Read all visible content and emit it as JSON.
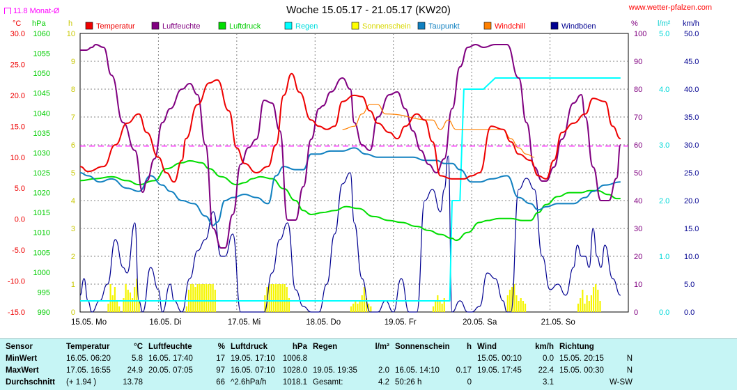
{
  "title": "Woche 15.05.17 - 21.05.17 (KW20)",
  "site": "www.wetter-pfalzen.com",
  "monat_label": "11.8 Monat-Ø",
  "units": {
    "temp": "°C",
    "hpa": "hPa",
    "h": "h",
    "pct": "%",
    "lm2": "l/m²",
    "kmh": "km/h"
  },
  "colors": {
    "temperatur": "#ee0000",
    "luftfeuchte": "#800080",
    "luftdruck": "#00dd00",
    "regen": "#00ffff",
    "sonnenschein": "#ffff00",
    "taupunkt": "#1080c0",
    "windchill": "#ff8000",
    "windboeen": "#000090",
    "monat": "#ff00ff"
  },
  "chart_data": {
    "type": "line",
    "title": "Woche 15.05.17 - 21.05.17 (KW20)",
    "x_ticks": [
      "15.05. Mo",
      "16.05. Di",
      "17.05. Mi",
      "18.05. Do",
      "19.05. Fr",
      "20.05. Sa",
      "21.05. So"
    ],
    "axes": {
      "temp": {
        "label": "°C",
        "ylim": [
          -15,
          30
        ],
        "ticks": [
          "30.0",
          "25.0",
          "20.0",
          "15.0",
          "10.0",
          "5.0",
          "0.0",
          "-5.0",
          "-10.0",
          "-15.0"
        ]
      },
      "pressure": {
        "label": "hPa",
        "ylim": [
          990,
          1060
        ],
        "ticks": [
          "1060",
          "1055",
          "1050",
          "1045",
          "1040",
          "1035",
          "1030",
          "1025",
          "1020",
          "1015",
          "1010",
          "1005",
          "1000",
          "995",
          "990"
        ]
      },
      "sun": {
        "label": "h",
        "ylim": [
          0,
          10
        ],
        "ticks": [
          "10",
          "9",
          "8",
          "7",
          "6",
          "5",
          "4",
          "3",
          "2",
          "1",
          "0"
        ]
      },
      "humidity": {
        "label": "%",
        "ylim": [
          0,
          100
        ],
        "ticks": [
          "100",
          "90",
          "80",
          "70",
          "60",
          "50",
          "40",
          "30",
          "20",
          "10",
          "0"
        ]
      },
      "rain": {
        "label": "l/m²",
        "ylim": [
          0,
          5
        ],
        "ticks": [
          "5.0",
          "4.0",
          "3.0",
          "2.0",
          "1.0",
          "0.0"
        ]
      },
      "wind": {
        "label": "km/h",
        "ylim": [
          0,
          50
        ],
        "ticks": [
          "50.0",
          "45.0",
          "40.0",
          "35.0",
          "30.0",
          "25.0",
          "20.0",
          "15.0",
          "10.0",
          "5.0",
          "0.0"
        ]
      }
    },
    "legend": [
      "Temperatur",
      "Luftfeuchte",
      "Luftdruck",
      "Regen",
      "Sonnenschein",
      "Taupunkt",
      "Windchill",
      "Windböen"
    ],
    "monat_avg_temp": 11.8,
    "series": [
      {
        "name": "Temperatur",
        "axis": "temp",
        "color": "#ee0000",
        "x": [
          0,
          0.1,
          0.3,
          0.45,
          0.6,
          0.75,
          0.85,
          1.0,
          1.1,
          1.2,
          1.3,
          1.35,
          1.5,
          1.65,
          1.75,
          1.9,
          2.0,
          2.1,
          2.25,
          2.4,
          2.5,
          2.6,
          2.7,
          2.8,
          2.95,
          3.05,
          3.15,
          3.25,
          3.35,
          3.5,
          3.6,
          3.7,
          3.8,
          3.95,
          4.05,
          4.15,
          4.3,
          4.4,
          4.5,
          4.6,
          4.75,
          4.9,
          5.0,
          5.1,
          5.25,
          5.4,
          5.5,
          5.6,
          5.75,
          5.85,
          5.95,
          6.05,
          6.15,
          6.3,
          6.45,
          6.55,
          6.7,
          6.8,
          6.9
        ],
        "y": [
          8.5,
          7.7,
          8.5,
          12,
          15.5,
          17,
          14,
          10,
          7.5,
          6,
          9.5,
          13,
          18.5,
          22,
          22.5,
          17.5,
          11.5,
          9,
          7.5,
          8.5,
          12,
          20,
          23.5,
          20.5,
          16,
          15,
          14.5,
          15,
          19,
          20,
          19.8,
          17.5,
          15.5,
          14,
          13,
          15,
          17,
          16,
          12.5,
          7,
          6.5,
          6.5,
          7,
          7.5,
          15,
          14.5,
          12.5,
          10.5,
          9.5,
          7,
          6.5,
          9.5,
          14,
          15.5,
          17,
          19.5,
          19,
          15,
          13
        ]
      },
      {
        "name": "Luftfeuchte",
        "axis": "humidity",
        "color": "#800080",
        "x": [
          0,
          0.08,
          0.15,
          0.2,
          0.3,
          0.4,
          0.55,
          0.7,
          0.8,
          0.85,
          0.95,
          1.05,
          1.15,
          1.3,
          1.4,
          1.5,
          1.6,
          1.7,
          1.8,
          1.85,
          1.95,
          2.05,
          2.15,
          2.25,
          2.35,
          2.45,
          2.55,
          2.65,
          2.75,
          2.85,
          2.95,
          3.05,
          3.1,
          3.2,
          3.35,
          3.45,
          3.5,
          3.6,
          3.7,
          3.8,
          3.95,
          4.05,
          4.15,
          4.25,
          4.35,
          4.45,
          4.55,
          4.65,
          4.75,
          4.85,
          4.95,
          5.05,
          5.15,
          5.3,
          5.45,
          5.6,
          5.7,
          5.8,
          5.9,
          5.95,
          6.05,
          6.15,
          6.3,
          6.4,
          6.45,
          6.55,
          6.65,
          6.75,
          6.85,
          6.9
        ],
        "y": [
          94,
          94,
          95,
          96,
          95,
          85,
          68,
          58,
          43,
          47,
          55,
          68,
          73,
          80,
          82,
          78,
          60,
          30,
          23,
          23,
          35,
          53,
          59,
          62,
          76,
          75,
          65,
          33,
          33,
          45,
          62,
          73,
          74,
          79,
          84,
          80,
          68,
          60,
          58,
          70,
          78,
          79,
          73,
          65,
          58,
          53,
          50,
          55,
          73,
          88,
          95,
          96,
          95,
          96,
          96,
          84,
          68,
          52,
          47,
          47,
          52,
          62,
          75,
          78,
          70,
          52,
          40,
          40,
          48,
          60
        ]
      },
      {
        "name": "Luftdruck",
        "axis": "pressure",
        "color": "#00dd00",
        "x": [
          0,
          0.2,
          0.4,
          0.6,
          0.75,
          0.95,
          1.1,
          1.3,
          1.4,
          1.55,
          1.65,
          1.8,
          2.0,
          2.1,
          2.2,
          2.3,
          2.45,
          2.6,
          2.75,
          2.85,
          2.95,
          3.1,
          3.25,
          3.4,
          3.55,
          3.75,
          3.95,
          4.1,
          4.3,
          4.45,
          4.6,
          4.75,
          4.8,
          4.95,
          5.1,
          5.2,
          5.35,
          5.5,
          5.65,
          5.75,
          5.85,
          5.95,
          6.1,
          6.25,
          6.4,
          6.5,
          6.6,
          6.75,
          6.85,
          6.9
        ],
        "y": [
          1023,
          1023.5,
          1024,
          1023,
          1022,
          1023,
          1026,
          1027.5,
          1028,
          1027.5,
          1026,
          1024,
          1022,
          1022.5,
          1023.5,
          1024,
          1023.5,
          1021,
          1018,
          1015.5,
          1014.5,
          1015,
          1015.5,
          1016.5,
          1016,
          1014,
          1013,
          1012.5,
          1011.5,
          1010.5,
          1009.5,
          1008.5,
          1008,
          1010,
          1012.5,
          1013,
          1013.5,
          1013.5,
          1013,
          1013,
          1015,
          1017,
          1019,
          1020,
          1020,
          1020.5,
          1020.5,
          1019.5,
          1018.5,
          1018.5
        ]
      },
      {
        "name": "Taupunkt",
        "axis": "temp",
        "color": "#1080c0",
        "x": [
          0,
          0.1,
          0.25,
          0.4,
          0.6,
          0.75,
          0.9,
          1.05,
          1.15,
          1.3,
          1.45,
          1.6,
          1.7,
          1.75,
          1.85,
          1.95,
          2.1,
          2.25,
          2.4,
          2.5,
          2.6,
          2.75,
          2.85,
          2.95,
          3.05,
          3.2,
          3.35,
          3.5,
          3.65,
          3.8,
          3.95,
          4.1,
          4.25,
          4.4,
          4.55,
          4.65,
          4.75,
          4.85,
          5.0,
          5.1,
          5.25,
          5.45,
          5.6,
          5.75,
          5.85,
          5.95,
          6.1,
          6.3,
          6.45,
          6.55,
          6.7,
          6.9
        ],
        "y": [
          7.5,
          7,
          6,
          6.5,
          5,
          4.5,
          7,
          5.5,
          4.5,
          3,
          2.5,
          0.5,
          -1,
          -0.5,
          3,
          3.5,
          4,
          3.5,
          2.5,
          7,
          8.5,
          8,
          8,
          10.5,
          10.5,
          11,
          11,
          11.5,
          10.5,
          10,
          10,
          10,
          10,
          9.5,
          9.5,
          9,
          9,
          8,
          6,
          6,
          6.5,
          7,
          3.5,
          2.5,
          1.5,
          2,
          2.5,
          2.5,
          3.5,
          4.5,
          5.5,
          6
        ]
      },
      {
        "name": "Windchill",
        "axis": "temp",
        "color": "#ff8000",
        "x": [
          3.35,
          3.5,
          3.6,
          3.7,
          3.8,
          3.9,
          4.5,
          4.6,
          4.7,
          4.8,
          5.4,
          5.5,
          5.6,
          5.7,
          5.8
        ],
        "y": [
          14.5,
          15,
          17,
          18.5,
          18.5,
          17,
          16,
          14.5,
          16,
          14.5,
          14.5,
          13,
          11.5,
          10.5,
          10
        ]
      },
      {
        "name": "Regen",
        "axis": "rain",
        "color": "#00ffff",
        "x": [
          0,
          4.72,
          4.75,
          4.85,
          4.9,
          5.0,
          5.15,
          5.3,
          6.9
        ],
        "y": [
          0.2,
          0.2,
          2.0,
          2.0,
          4.0,
          4.0,
          4.0,
          4.2,
          4.2
        ]
      },
      {
        "name": "Windböen",
        "axis": "wind",
        "color": "#000090",
        "x": [
          0,
          0.05,
          0.1,
          0.15,
          0.25,
          0.35,
          0.45,
          0.55,
          0.6,
          0.7,
          0.75,
          0.8,
          0.9,
          1.0,
          1.05,
          1.15,
          1.2,
          1.3,
          1.4,
          1.5,
          1.6,
          1.7,
          1.8,
          1.85,
          1.95,
          2.05,
          2.15,
          2.25,
          2.35,
          2.45,
          2.55,
          2.65,
          2.75,
          2.85,
          2.95,
          3.05,
          3.15,
          3.25,
          3.35,
          3.45,
          3.5,
          3.6,
          3.7,
          3.8,
          3.9,
          4.0,
          4.1,
          4.2,
          4.3,
          4.4,
          4.5,
          4.6,
          4.65,
          4.7,
          4.75,
          4.85,
          4.95,
          5.0,
          5.1,
          5.2,
          5.3,
          5.4,
          5.45,
          5.5,
          5.6,
          5.7,
          5.8,
          5.9,
          6.0,
          6.1,
          6.2,
          6.3,
          6.35,
          6.4,
          6.45,
          6.5,
          6.55,
          6.6,
          6.65,
          6.7,
          6.8,
          6.9
        ],
        "y": [
          3,
          6,
          2,
          0,
          2,
          5,
          13,
          8,
          7,
          16,
          2,
          0,
          8,
          4,
          0,
          5,
          2,
          0,
          6,
          11,
          13,
          18,
          10,
          10,
          14,
          0,
          0,
          0,
          0,
          7,
          13,
          16,
          4,
          1,
          0,
          0,
          5,
          14,
          23,
          25,
          16,
          6,
          0,
          0,
          2,
          0,
          6,
          0,
          0,
          20,
          22,
          18,
          22,
          28,
          0,
          2,
          0,
          0,
          1,
          7,
          6,
          2,
          0,
          0,
          22,
          24,
          22,
          10,
          4,
          5,
          3,
          8,
          12,
          10,
          10,
          8,
          15,
          10,
          8,
          12,
          6,
          3
        ]
      }
    ],
    "sunshine_bars": [
      {
        "day": 0,
        "start": 0.35,
        "values": [
          0.3,
          1,
          0.6,
          0.9,
          0.4,
          0.2,
          0,
          0.5,
          1,
          0.8,
          0.7,
          0.5,
          0.9,
          1.2,
          0.4
        ]
      },
      {
        "day": 1,
        "start": 0.35,
        "values": [
          0.2,
          0.8,
          1,
          1,
          0.9,
          1,
          1,
          1,
          1,
          1,
          1,
          1,
          1,
          0.8
        ]
      },
      {
        "day": 2,
        "start": 0.35,
        "values": [
          0.6,
          0.9,
          1,
          1,
          1,
          1,
          1,
          1,
          1,
          1,
          0.9,
          0.5
        ]
      },
      {
        "day": 3,
        "start": 0.45,
        "values": [
          0.2,
          0.3,
          0.4,
          0.3,
          0.4,
          0.6,
          0.9,
          0.5,
          0.3,
          0.2
        ]
      },
      {
        "day": 4,
        "start": 0.5,
        "values": [
          0.2,
          0.4,
          0.6,
          0.4,
          0.3,
          0.5
        ]
      },
      {
        "day": 5,
        "start": 0.45,
        "values": [
          0.6,
          0.8,
          0.9,
          1,
          0.6,
          0.4,
          0.5,
          0.4,
          0.3
        ]
      },
      {
        "day": 6,
        "start": 0.35,
        "values": [
          0.3,
          0.5,
          0.8,
          0.3,
          0.6,
          0.4,
          0.6,
          0.9,
          1,
          0.8,
          0.4
        ]
      }
    ]
  },
  "table": {
    "columns": [
      {
        "head": "Sensor",
        "unit": "",
        "rows": [
          "MinWert",
          "MaxWert",
          "Durchschnitt"
        ],
        "vals": [
          "",
          "",
          ""
        ]
      },
      {
        "head": "Temperatur",
        "unit": "°C",
        "rows": [
          "16.05.  06:20",
          "17.05.  16:55",
          "(+ 1.94 )"
        ],
        "vals": [
          "5.8",
          "24.9",
          "13.78"
        ]
      },
      {
        "head": "Luftfeuchte",
        "unit": "%",
        "rows": [
          "16.05.  17:40",
          "20.05.  07:05",
          ""
        ],
        "vals": [
          "17",
          "97",
          "66"
        ]
      },
      {
        "head": "Luftdruck",
        "unit": "hPa",
        "rows": [
          "19.05.  17:10",
          "16.05.  07:10",
          "^2.6hPa/h"
        ],
        "vals": [
          "1006.8",
          "1028.0",
          "1018.1"
        ]
      },
      {
        "head": "Regen",
        "unit": "l/m²",
        "rows": [
          "",
          "19.05.  19:35",
          "Gesamt:"
        ],
        "vals": [
          "",
          "2.0",
          "4.2"
        ]
      },
      {
        "head": "Sonnenschein",
        "unit": "h",
        "rows": [
          "",
          "16.05.  14:10",
          "50:26 h"
        ],
        "vals": [
          "",
          "0.17",
          "0"
        ]
      },
      {
        "head": "Wind",
        "unit": "km/h",
        "rows": [
          "15.05.  00:10",
          "19.05.  17:45",
          ""
        ],
        "vals": [
          "0.0",
          "22.4",
          "3.1"
        ]
      },
      {
        "head": "Richtung",
        "unit": "",
        "rows": [
          "15.05.  20:15",
          "15.05.  00:30",
          ""
        ],
        "vals": [
          "N",
          "N",
          "W-SW"
        ]
      }
    ]
  }
}
